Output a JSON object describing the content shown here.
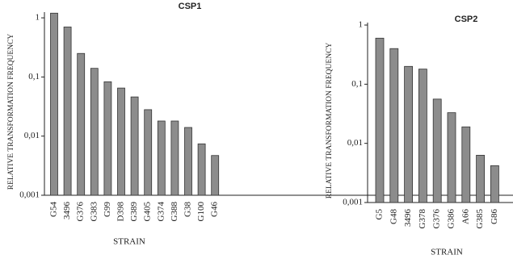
{
  "chart_data": [
    {
      "type": "bar",
      "title": "CSP1",
      "x_label": "STRAIN",
      "y_label": "RELATIVE TRANSFORMATION FREQUENCY",
      "log_scale": true,
      "color": "#8c8c8c",
      "categories": [
        "G54",
        "3496",
        "G376",
        "G383",
        "G99",
        "D398",
        "G389",
        "G405",
        "G374",
        "G388",
        "G38",
        "G100",
        "G46"
      ],
      "values": [
        1.2,
        0.7,
        0.25,
        0.14,
        0.083,
        0.065,
        0.046,
        0.028,
        0.018,
        0.018,
        0.014,
        0.0074,
        0.0047
      ],
      "ylim": [
        0.001,
        1.25
      ],
      "yticks": [
        {
          "value": 0.001,
          "label": "0,001"
        },
        {
          "value": 0.01,
          "label": "0,01"
        },
        {
          "value": 0.1,
          "label": "0,1"
        },
        1
      ]
    },
    {
      "type": "bar",
      "title": "CSP2",
      "x_label": "STRAIN",
      "y_label": "RELATIVE TRANSFORMATION FREQUENCY",
      "log_scale": true,
      "color": "#8c8c8c",
      "categories": [
        "G5",
        "G48",
        "3496",
        "G378",
        "G376",
        "G386",
        "A66",
        "G385",
        "G86"
      ],
      "values": [
        0.6,
        0.4,
        0.2,
        0.18,
        0.056,
        0.033,
        0.019,
        0.0063,
        0.0042
      ],
      "ylim": [
        0.001,
        1.1
      ],
      "yticks": [
        {
          "value": 0.001,
          "label": "0,001"
        },
        {
          "value": 0.01,
          "label": "0,01"
        },
        {
          "value": 0.1,
          "label": "0,1"
        },
        1
      ]
    }
  ]
}
